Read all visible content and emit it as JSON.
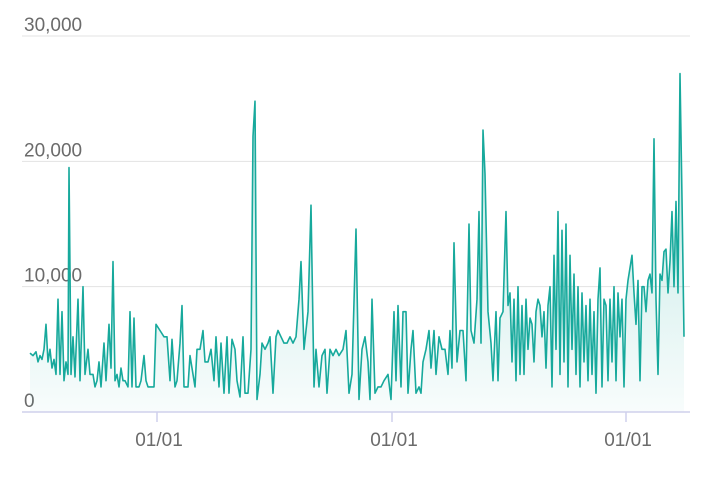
{
  "chart_data": {
    "type": "area",
    "x": [
      0,
      3,
      6,
      8,
      10,
      12,
      14,
      16,
      18,
      20,
      22,
      24,
      26,
      28,
      30,
      32,
      34,
      36,
      38,
      39,
      41,
      43,
      45,
      48,
      50,
      53,
      55,
      58,
      60,
      63,
      65,
      67,
      69,
      71,
      74,
      76,
      79,
      81,
      83,
      85,
      87,
      89,
      91,
      93,
      95,
      98,
      100,
      102,
      104,
      106,
      109,
      111,
      114,
      116,
      118,
      121,
      124,
      126,
      130,
      134,
      137,
      140,
      142,
      145,
      147,
      150,
      152,
      154,
      158,
      160,
      163,
      165,
      167,
      170,
      173,
      175,
      178,
      181,
      184,
      186,
      189,
      191,
      194,
      197,
      199,
      202,
      205,
      207,
      210,
      213,
      215,
      218,
      221,
      223,
      225,
      227,
      230,
      232,
      235,
      238,
      240,
      243,
      246,
      248,
      251,
      254,
      257,
      260,
      263,
      266,
      269,
      271,
      274,
      278,
      281,
      284,
      286,
      289,
      292,
      295,
      297,
      300,
      303,
      306,
      309,
      313,
      316,
      319,
      322,
      326,
      329,
      332,
      335,
      338,
      340,
      342,
      345,
      348,
      351,
      354,
      358,
      361,
      364,
      366,
      368,
      371,
      373,
      376,
      378,
      381,
      383,
      386,
      389,
      391,
      393,
      396,
      399,
      401,
      404,
      406,
      409,
      412,
      415,
      418,
      420,
      422,
      424,
      427,
      430,
      433,
      436,
      439,
      441,
      444,
      447,
      449,
      451,
      453,
      455,
      458,
      461,
      463,
      466,
      468,
      470,
      473,
      476,
      478,
      480,
      482,
      484,
      486,
      488,
      490,
      492,
      494,
      496,
      498,
      500,
      502,
      504,
      506,
      508,
      510,
      512,
      514,
      516,
      518,
      520,
      522,
      524,
      526,
      528,
      530,
      532,
      534,
      536,
      538,
      540,
      542,
      544,
      546,
      548,
      550,
      552,
      554,
      556,
      558,
      560,
      562,
      564,
      566,
      568,
      570,
      572,
      574,
      576,
      578,
      580,
      582,
      584,
      586,
      588,
      590,
      592,
      594,
      596,
      598,
      600,
      602,
      604,
      606,
      608,
      610,
      612,
      614,
      616,
      618,
      620,
      622,
      624,
      626,
      628,
      630,
      632,
      634,
      636,
      638,
      640,
      642,
      644,
      646,
      648,
      650,
      652,
      654
    ],
    "values": [
      4700,
      4500,
      4800,
      4000,
      4500,
      4200,
      5000,
      7000,
      4000,
      5000,
      3500,
      4200,
      3000,
      9000,
      3000,
      8000,
      2500,
      4000,
      3000,
      19500,
      3000,
      6000,
      2800,
      9000,
      2500,
      10000,
      3000,
      5000,
      3000,
      3000,
      2000,
      2500,
      4000,
      2000,
      5500,
      2500,
      7000,
      3500,
      12000,
      2500,
      3000,
      2000,
      3500,
      2500,
      2500,
      2000,
      8000,
      2000,
      7500,
      2000,
      2000,
      2500,
      4500,
      2500,
      2000,
      2000,
      2000,
      7000,
      6500,
      6000,
      6000,
      2500,
      5800,
      2000,
      2500,
      5500,
      8500,
      2000,
      2000,
      4500,
      3000,
      2000,
      5000,
      5000,
      6500,
      4000,
      4000,
      5000,
      2500,
      6000,
      2000,
      5500,
      1500,
      6000,
      1500,
      5800,
      5000,
      2500,
      1200,
      6000,
      1500,
      1500,
      5000,
      22000,
      24800,
      1000,
      3000,
      5500,
      5000,
      5500,
      6000,
      1500,
      6000,
      6500,
      6000,
      5500,
      5500,
      6000,
      5500,
      6000,
      9000,
      12000,
      5000,
      8000,
      16500,
      2000,
      5000,
      2000,
      4500,
      5000,
      1500,
      5000,
      4500,
      5000,
      4500,
      5000,
      6500,
      1500,
      3000,
      14600,
      1000,
      5000,
      6000,
      4000,
      1000,
      9000,
      1500,
      2000,
      2000,
      2500,
      3000,
      1000,
      8000,
      2500,
      8500,
      2000,
      8000,
      8000,
      1500,
      5000,
      6500,
      1500,
      2000,
      1500,
      4000,
      5000,
      6500,
      3500,
      6500,
      3000,
      6000,
      5000,
      5000,
      3000,
      6500,
      3500,
      13500,
      4000,
      6500,
      6500,
      2500,
      15000,
      6500,
      5500,
      9000,
      16000,
      5500,
      22500,
      19000,
      8000,
      5500,
      2500,
      8000,
      2500,
      7500,
      8000,
      16000,
      8500,
      9500,
      4000,
      9000,
      2500,
      10000,
      3000,
      8500,
      3000,
      9000,
      5000,
      7500,
      7000,
      4000,
      8000,
      9000,
      8500,
      6000,
      8000,
      3500,
      8500,
      10000,
      2000,
      12500,
      5000,
      16000,
      3000,
      14500,
      4000,
      15000,
      2000,
      12500,
      5000,
      11000,
      3000,
      10000,
      2000,
      9500,
      4000,
      8500,
      2500,
      9000,
      3000,
      8000,
      1500,
      9000,
      11500,
      2000,
      9000,
      8500,
      2500,
      9000,
      4000,
      10000,
      2500,
      9500,
      6000,
      9000,
      2000,
      9000,
      10500,
      11500,
      12500,
      9500,
      7000,
      10500,
      2500,
      10000,
      10000,
      8000,
      10500,
      11000,
      9500,
      21800,
      9000,
      3000,
      11000,
      10500,
      12800,
      13000,
      9500,
      12000,
      16000,
      10000,
      16800,
      9500,
      27000,
      17000,
      6000
    ],
    "color": "#17a99c",
    "xlim": [
      -8,
      660
    ],
    "xticks": [
      {
        "value": 127,
        "label": "01/01"
      },
      {
        "value": 362,
        "label": "01/01"
      },
      {
        "value": 596,
        "label": "01/01"
      }
    ],
    "ylim": [
      0,
      30000
    ],
    "yticks": [
      0,
      {
        "value": 10000,
        "label": "10,000"
      },
      {
        "value": 20000,
        "label": "20,000"
      },
      {
        "value": 30000,
        "label": "30,000"
      }
    ],
    "grid": true
  }
}
